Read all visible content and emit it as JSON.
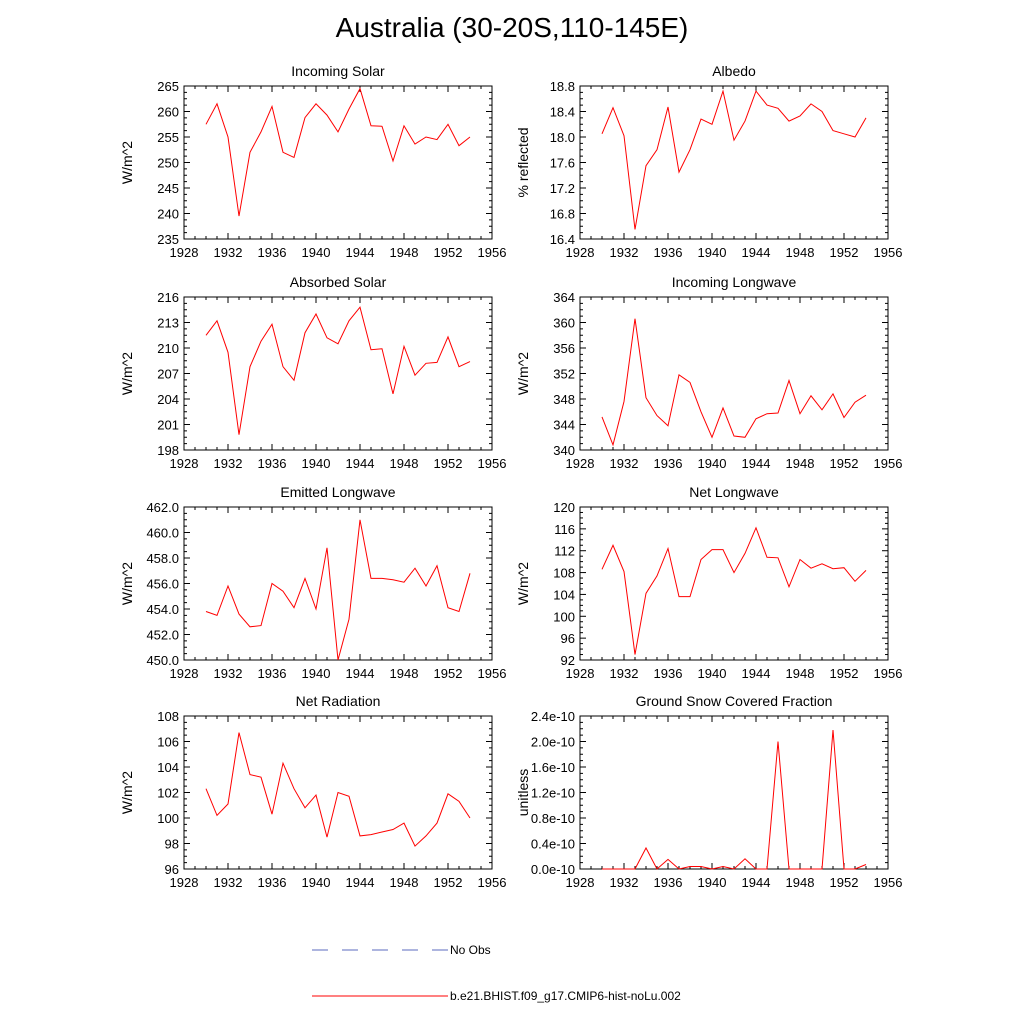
{
  "page": {
    "title": "Australia (30-20S,110-145E)"
  },
  "legend": [
    {
      "label": "No Obs",
      "color": "#5b6bbf",
      "dash": true
    },
    {
      "label": "b.e21.BHIST.f09_g17.CMIP6-hist-noLu.002",
      "color": "#ff0000",
      "dash": false
    }
  ],
  "chart_data": [
    {
      "type": "line",
      "title": "Incoming Solar",
      "ylabel": "W/m^2",
      "xlim": [
        1928,
        1956
      ],
      "xticks": [
        "1928",
        "1932",
        "1936",
        "1940",
        "1944",
        "1948",
        "1952",
        "1956"
      ],
      "ylim": [
        235,
        265
      ],
      "yticks": [
        "235",
        "240",
        "245",
        "250",
        "255",
        "260",
        "265"
      ],
      "x": [
        1930,
        1931,
        1932,
        1933,
        1934,
        1935,
        1936,
        1937,
        1938,
        1939,
        1940,
        1941,
        1942,
        1943,
        1944,
        1945,
        1946,
        1947,
        1948,
        1949,
        1950,
        1951,
        1952,
        1953,
        1954
      ],
      "series": [
        {
          "color": "#ff0000",
          "values": [
            257.5,
            261.5,
            255,
            239.5,
            252,
            256,
            261,
            252,
            251,
            258.8,
            261.5,
            259.3,
            256,
            260.5,
            264.5,
            257.2,
            257.1,
            250.3,
            257.2,
            253.6,
            255,
            254.5,
            257.5,
            253.3,
            255
          ]
        }
      ]
    },
    {
      "type": "line",
      "title": "Albedo",
      "ylabel": "% reflected",
      "xlim": [
        1928,
        1956
      ],
      "xticks": [
        "1928",
        "1932",
        "1936",
        "1940",
        "1944",
        "1948",
        "1952",
        "1956"
      ],
      "ylim": [
        16.4,
        18.8
      ],
      "yticks": [
        "16.4",
        "16.8",
        "17.2",
        "17.6",
        "18.0",
        "18.4",
        "18.8"
      ],
      "x": [
        1930,
        1931,
        1932,
        1933,
        1934,
        1935,
        1936,
        1937,
        1938,
        1939,
        1940,
        1941,
        1942,
        1943,
        1944,
        1945,
        1946,
        1947,
        1948,
        1949,
        1950,
        1951,
        1952,
        1953,
        1954
      ],
      "series": [
        {
          "color": "#ff0000",
          "values": [
            18.05,
            18.46,
            18.02,
            16.55,
            17.55,
            17.8,
            18.47,
            17.45,
            17.8,
            18.28,
            18.2,
            18.72,
            17.95,
            18.25,
            18.72,
            18.5,
            18.45,
            18.25,
            18.33,
            18.52,
            18.4,
            18.1,
            18.05,
            18.0,
            18.3
          ]
        }
      ]
    },
    {
      "type": "line",
      "title": "Absorbed Solar",
      "ylabel": "W/m^2",
      "xlim": [
        1928,
        1956
      ],
      "xticks": [
        "1928",
        "1932",
        "1936",
        "1940",
        "1944",
        "1948",
        "1952",
        "1956"
      ],
      "ylim": [
        198,
        216
      ],
      "yticks": [
        "198",
        "201",
        "204",
        "207",
        "210",
        "213",
        "216"
      ],
      "x": [
        1930,
        1931,
        1932,
        1933,
        1934,
        1935,
        1936,
        1937,
        1938,
        1939,
        1940,
        1941,
        1942,
        1943,
        1944,
        1945,
        1946,
        1947,
        1948,
        1949,
        1950,
        1951,
        1952,
        1953,
        1954
      ],
      "series": [
        {
          "color": "#ff0000",
          "values": [
            211.5,
            213.2,
            209.5,
            199.8,
            207.8,
            210.8,
            212.8,
            207.8,
            206.2,
            211.8,
            214,
            211.2,
            210.5,
            213.2,
            214.8,
            209.8,
            209.9,
            204.6,
            210.2,
            206.8,
            208.2,
            208.3,
            211.3,
            207.8,
            208.4
          ]
        }
      ]
    },
    {
      "type": "line",
      "title": "Incoming Longwave",
      "ylabel": "W/m^2",
      "xlim": [
        1928,
        1956
      ],
      "xticks": [
        "1928",
        "1932",
        "1936",
        "1940",
        "1944",
        "1948",
        "1952",
        "1956"
      ],
      "ylim": [
        340,
        364
      ],
      "yticks": [
        "340",
        "344",
        "348",
        "352",
        "356",
        "360",
        "364"
      ],
      "x": [
        1930,
        1931,
        1932,
        1933,
        1934,
        1935,
        1936,
        1937,
        1938,
        1939,
        1940,
        1941,
        1942,
        1943,
        1944,
        1945,
        1946,
        1947,
        1948,
        1949,
        1950,
        1951,
        1952,
        1953,
        1954
      ],
      "series": [
        {
          "color": "#ff0000",
          "values": [
            345.2,
            340.8,
            347.6,
            360.6,
            348.2,
            345.4,
            343.8,
            351.8,
            350.6,
            346,
            342,
            346.6,
            342.2,
            342,
            344.9,
            345.7,
            345.8,
            350.9,
            345.7,
            348.5,
            346.3,
            348.8,
            345.1,
            347.5,
            348.6
          ]
        }
      ]
    },
    {
      "type": "line",
      "title": "Emitted Longwave",
      "ylabel": "W/m^2",
      "xlim": [
        1928,
        1956
      ],
      "xticks": [
        "1928",
        "1932",
        "1936",
        "1940",
        "1944",
        "1948",
        "1952",
        "1956"
      ],
      "ylim": [
        450,
        462
      ],
      "yticks": [
        "450.0",
        "452.0",
        "454.0",
        "456.0",
        "458.0",
        "460.0",
        "462.0"
      ],
      "x": [
        1930,
        1931,
        1932,
        1933,
        1934,
        1935,
        1936,
        1937,
        1938,
        1939,
        1940,
        1941,
        1942,
        1943,
        1944,
        1945,
        1946,
        1947,
        1948,
        1949,
        1950,
        1951,
        1952,
        1953,
        1954
      ],
      "series": [
        {
          "color": "#ff0000",
          "values": [
            453.8,
            453.5,
            455.8,
            453.6,
            452.6,
            452.7,
            456,
            455.4,
            454.1,
            456.4,
            454,
            458.8,
            450,
            453.2,
            461,
            456.4,
            456.4,
            456.3,
            456.1,
            457.2,
            455.8,
            457.4,
            454.1,
            453.8,
            456.8
          ]
        }
      ]
    },
    {
      "type": "line",
      "title": "Net Longwave",
      "ylabel": "W/m^2",
      "xlim": [
        1928,
        1956
      ],
      "xticks": [
        "1928",
        "1932",
        "1936",
        "1940",
        "1944",
        "1948",
        "1952",
        "1956"
      ],
      "ylim": [
        92,
        120
      ],
      "yticks": [
        "92",
        "96",
        "100",
        "104",
        "108",
        "112",
        "116",
        "120"
      ],
      "x": [
        1930,
        1931,
        1932,
        1933,
        1934,
        1935,
        1936,
        1937,
        1938,
        1939,
        1940,
        1941,
        1942,
        1943,
        1944,
        1945,
        1946,
        1947,
        1948,
        1949,
        1950,
        1951,
        1952,
        1953,
        1954
      ],
      "series": [
        {
          "color": "#ff0000",
          "values": [
            108.6,
            113,
            108.2,
            93,
            104.2,
            107.4,
            112.4,
            103.6,
            103.6,
            110.4,
            112.2,
            112.2,
            108,
            111.5,
            116.2,
            110.8,
            110.7,
            105.4,
            110.4,
            108.8,
            109.6,
            108.7,
            108.9,
            106.4,
            108.4
          ]
        }
      ]
    },
    {
      "type": "line",
      "title": "Net Radiation",
      "ylabel": "W/m^2",
      "xlim": [
        1928,
        1956
      ],
      "xticks": [
        "1928",
        "1932",
        "1936",
        "1940",
        "1944",
        "1948",
        "1952",
        "1956"
      ],
      "ylim": [
        96,
        108
      ],
      "yticks": [
        "96",
        "98",
        "100",
        "102",
        "104",
        "106",
        "108"
      ],
      "x": [
        1930,
        1931,
        1932,
        1933,
        1934,
        1935,
        1936,
        1937,
        1938,
        1939,
        1940,
        1941,
        1942,
        1943,
        1944,
        1945,
        1946,
        1947,
        1948,
        1949,
        1950,
        1951,
        1952,
        1953,
        1954
      ],
      "series": [
        {
          "color": "#ff0000",
          "values": [
            102.3,
            100.2,
            101.1,
            106.7,
            103.4,
            103.2,
            100.3,
            104.3,
            102.3,
            100.8,
            101.8,
            98.5,
            102,
            101.7,
            98.6,
            98.7,
            98.9,
            99.1,
            99.6,
            97.8,
            98.6,
            99.6,
            101.9,
            101.3,
            100
          ]
        }
      ]
    },
    {
      "type": "line",
      "title": "Ground Snow Covered Fraction",
      "ylabel": "unitless",
      "xlim": [
        1928,
        1956
      ],
      "xticks": [
        "1928",
        "1932",
        "1936",
        "1940",
        "1944",
        "1948",
        "1952",
        "1956"
      ],
      "ylim": [
        0,
        2.4e-10
      ],
      "yticks": [
        "0.0e-10",
        "0.4e-10",
        "0.8e-10",
        "1.2e-10",
        "1.6e-10",
        "2.0e-10",
        "2.4e-10"
      ],
      "x": [
        1930,
        1931,
        1932,
        1933,
        1934,
        1935,
        1936,
        1937,
        1938,
        1939,
        1940,
        1941,
        1942,
        1943,
        1944,
        1945,
        1946,
        1947,
        1948,
        1949,
        1950,
        1951,
        1952,
        1953,
        1954
      ],
      "series": [
        {
          "color": "#ff0000",
          "values": [
            0,
            0,
            0,
            0,
            3.3e-11,
            0,
            1.5e-11,
            0,
            4e-12,
            4e-12,
            0,
            4e-12,
            0,
            1.6e-11,
            0,
            0,
            2e-10,
            0,
            0,
            0,
            0,
            2.18e-10,
            0,
            0,
            7e-12
          ]
        }
      ]
    }
  ]
}
